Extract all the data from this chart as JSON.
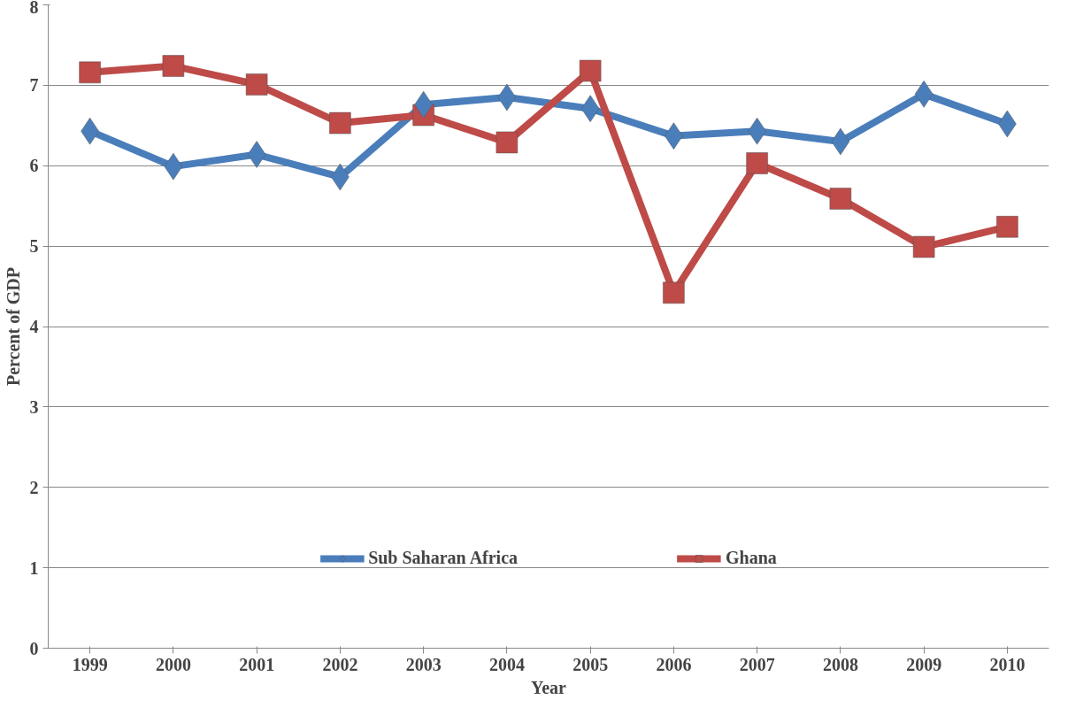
{
  "chart_data": {
    "type": "line",
    "xlabel": "Year",
    "ylabel": "Percent of GDP",
    "categories": [
      "1999",
      "2000",
      "2001",
      "2002",
      "2003",
      "2004",
      "2005",
      "2006",
      "2007",
      "2008",
      "2009",
      "2010"
    ],
    "series": [
      {
        "name": "Sub Saharan Africa",
        "color": "#4a7ebb",
        "marker": "diamond",
        "values": [
          6.43,
          5.99,
          6.14,
          5.86,
          6.76,
          6.85,
          6.71,
          6.37,
          6.43,
          6.3,
          6.89,
          6.52
        ]
      },
      {
        "name": "Ghana",
        "color": "#be4b48",
        "marker": "square",
        "values": [
          7.16,
          7.24,
          7.01,
          6.53,
          6.63,
          6.29,
          7.18,
          4.42,
          6.03,
          5.59,
          4.99,
          5.24
        ]
      }
    ],
    "ylim": [
      0,
      8
    ],
    "yticks": [
      0,
      1,
      2,
      3,
      4,
      5,
      6,
      7,
      8
    ],
    "grid": "y",
    "legend": "bottom"
  }
}
